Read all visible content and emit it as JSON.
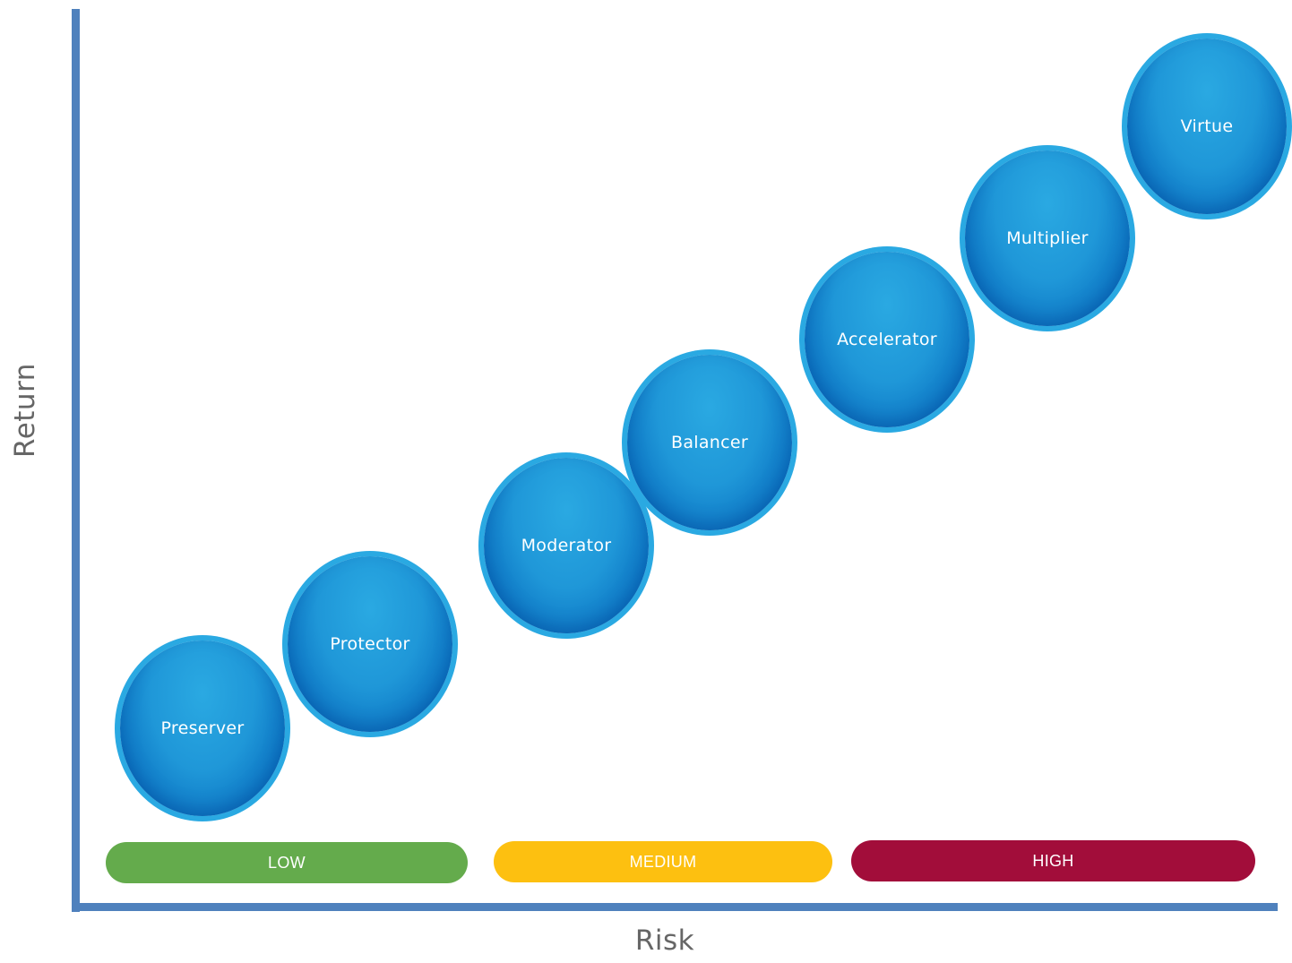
{
  "axes": {
    "y_label": "Return",
    "x_label": "Risk",
    "color": "#4f81bd"
  },
  "bubbles": [
    {
      "label": "Preserver"
    },
    {
      "label": "Protector"
    },
    {
      "label": "Moderator"
    },
    {
      "label": "Balancer"
    },
    {
      "label": "Accelerator"
    },
    {
      "label": "Multiplier"
    },
    {
      "label": "Virtue"
    }
  ],
  "risk_levels": [
    {
      "label": "LOW",
      "color": "#64ab4c"
    },
    {
      "label": "MEDIUM",
      "color": "#fdc010"
    },
    {
      "label": "HIGH",
      "color": "#a20d3a"
    }
  ],
  "bubble_color": "#1f97d8"
}
